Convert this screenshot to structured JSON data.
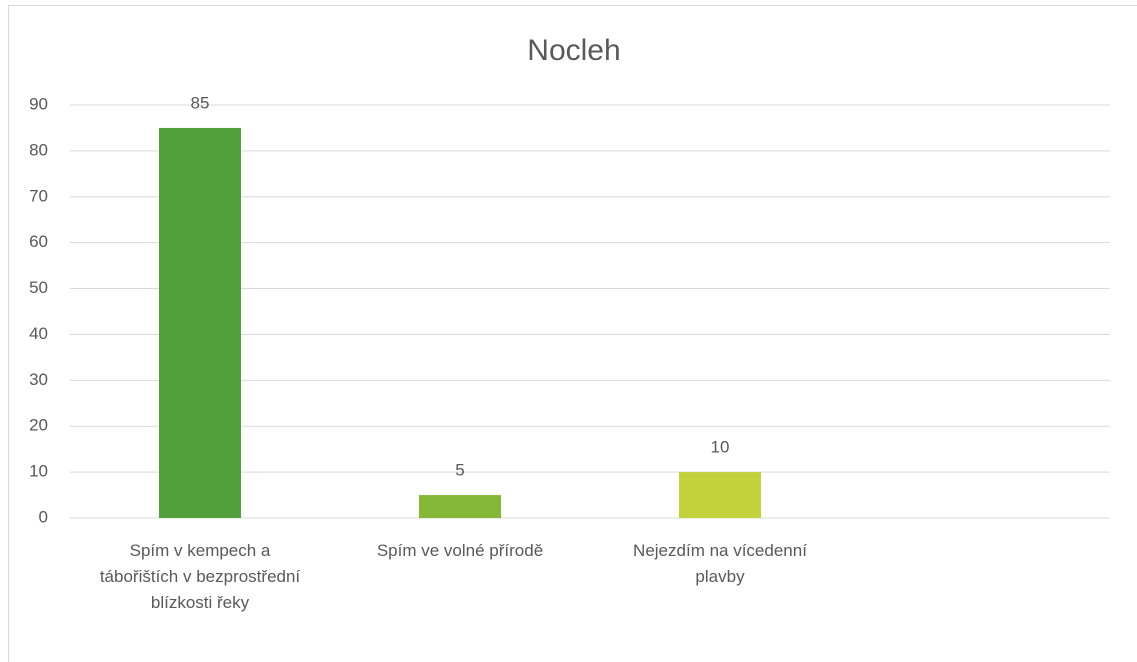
{
  "chart_data": {
    "type": "bar",
    "title": "Nocleh",
    "categories": [
      "Spím v kempech a tábořištích v bezprostřední blízkosti řeky",
      "Spím ve volné přírodě",
      "Nejezdím na vícedenní plavby",
      null
    ],
    "values": [
      85,
      5,
      10,
      null
    ],
    "colors": [
      "#52a03c",
      "#86b636",
      "#c3d13b",
      null
    ],
    "ylim": [
      0,
      90
    ],
    "yticks": [
      0,
      10,
      20,
      30,
      40,
      50,
      60,
      70,
      80,
      90
    ],
    "grid": true
  }
}
